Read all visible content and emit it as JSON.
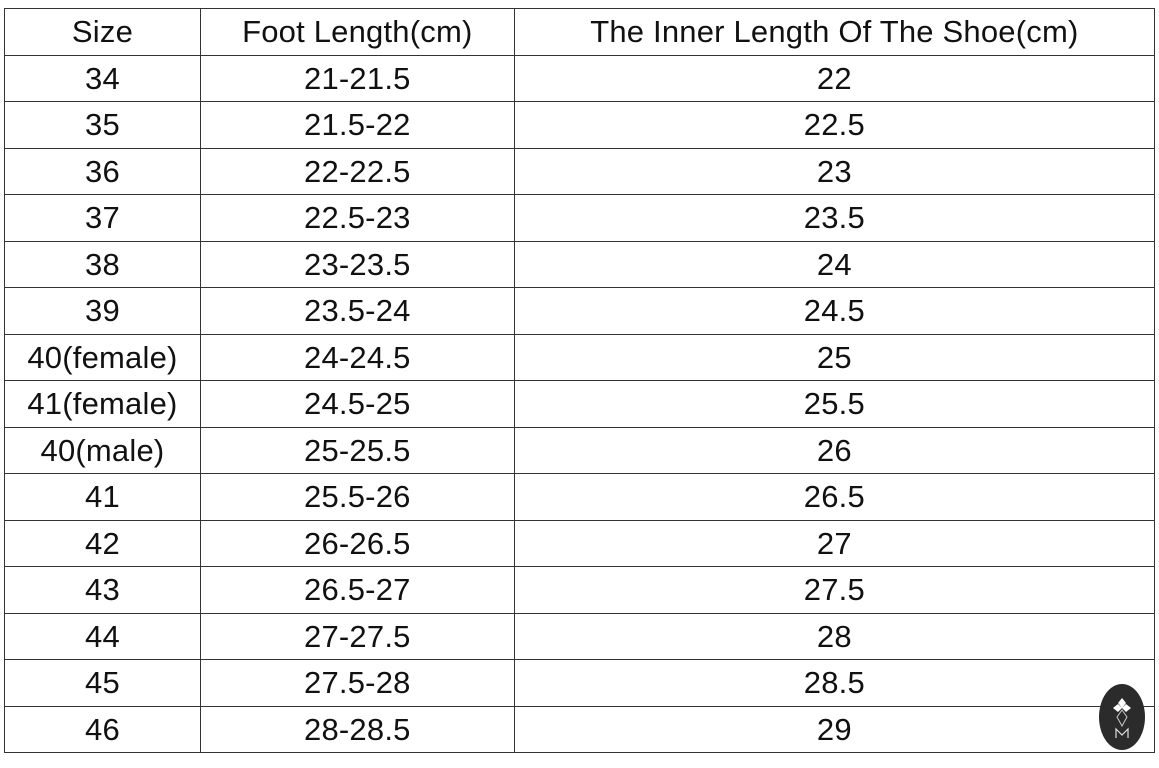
{
  "table": {
    "headers": [
      "Size",
      "Foot Length(cm)",
      "The Inner Length Of The Shoe(cm)"
    ],
    "rows": [
      [
        "34",
        "21-21.5",
        "22"
      ],
      [
        "35",
        "21.5-22",
        "22.5"
      ],
      [
        "36",
        "22-22.5",
        "23"
      ],
      [
        "37",
        "22.5-23",
        "23.5"
      ],
      [
        "38",
        "23-23.5",
        "24"
      ],
      [
        "39",
        "23.5-24",
        "24.5"
      ],
      [
        "40(female)",
        "24-24.5",
        "25"
      ],
      [
        "41(female)",
        "24.5-25",
        "25.5"
      ],
      [
        "40(male)",
        "25-25.5",
        "26"
      ],
      [
        "41",
        "25.5-26",
        "26.5"
      ],
      [
        "42",
        "26-26.5",
        "27"
      ],
      [
        "43",
        "26.5-27",
        "27.5"
      ],
      [
        "44",
        "27-27.5",
        "28"
      ],
      [
        "45",
        "27.5-28",
        "28.5"
      ],
      [
        "46",
        "28-28.5",
        "29"
      ]
    ]
  },
  "logo": {
    "icon": "brand-logo-icon",
    "letter": "M",
    "color": "#2b2b2b"
  }
}
